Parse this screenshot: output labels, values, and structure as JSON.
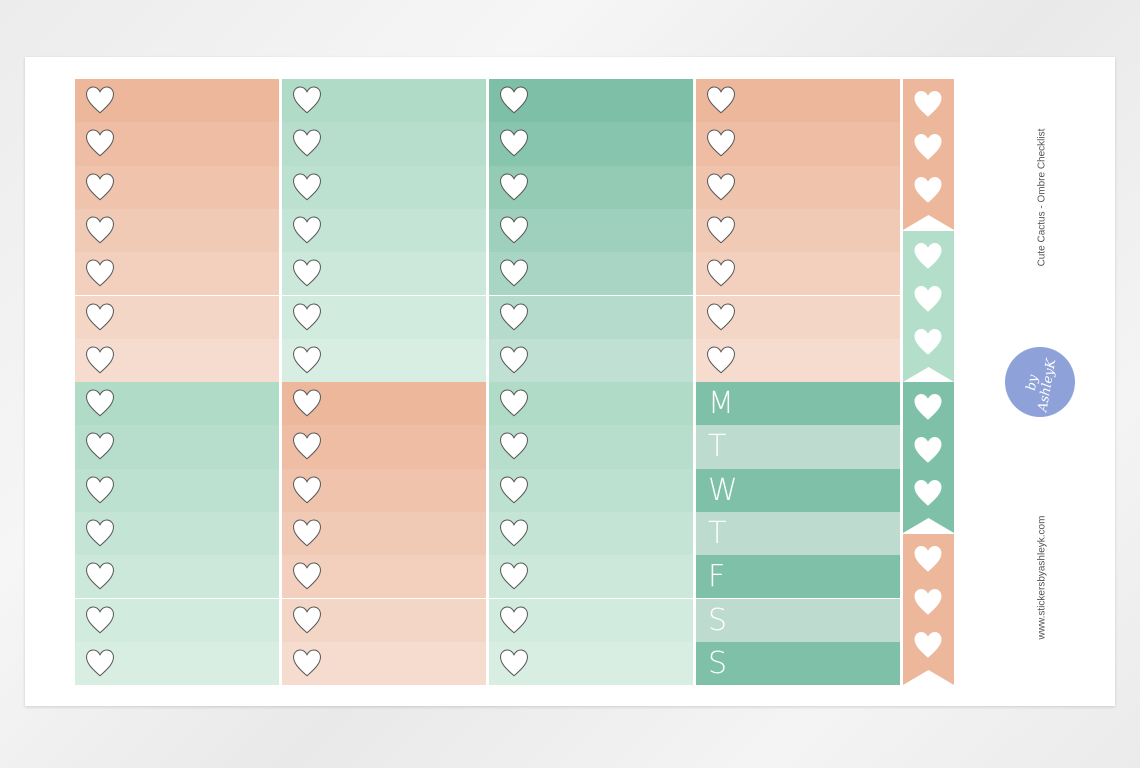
{
  "sheet": {
    "title": "Cute Cactus   - Ombre Checklist",
    "website": "www.stickersbyashleyk.com",
    "logo_text": "by AshleyK"
  },
  "colors": {
    "peach": [
      "#ecb79b",
      "#f6dccf"
    ],
    "mint": [
      "#b0dbc7",
      "#d8eee3"
    ],
    "green": [
      "#7dc0a7",
      "#bfe0d2"
    ],
    "day_dark": "#7fc1a8",
    "day_light": "#bddccf",
    "flag_peach": "#ecb79b",
    "flag_mint": "#b3dec9",
    "flag_green": "#7fc1a8"
  },
  "boxes": [
    {
      "theme": "peach",
      "icon": "heart-icon"
    },
    {
      "theme": "mint",
      "icon": "heart-icon"
    },
    {
      "theme": "green",
      "icon": "heart-icon"
    },
    {
      "theme": "peach",
      "icon": "heart-icon"
    },
    {
      "theme": "mint",
      "icon": "heart-icon"
    },
    {
      "theme": "peach",
      "icon": "heart-icon"
    },
    {
      "theme": "mint",
      "icon": "heart-icon"
    }
  ],
  "weekdays": [
    "M",
    "T",
    "W",
    "T",
    "F",
    "S",
    "S"
  ],
  "flags": [
    "flag_peach",
    "flag_mint",
    "flag_green",
    "flag_peach"
  ]
}
